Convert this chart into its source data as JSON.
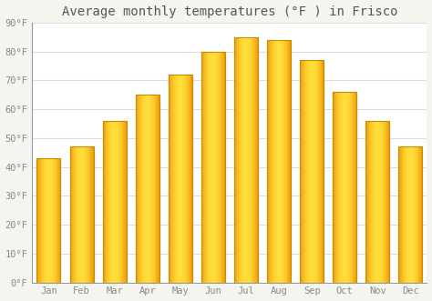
{
  "title": "Average monthly temperatures (°F ) in Frisco",
  "months": [
    "Jan",
    "Feb",
    "Mar",
    "Apr",
    "May",
    "Jun",
    "Jul",
    "Aug",
    "Sep",
    "Oct",
    "Nov",
    "Dec"
  ],
  "values": [
    43,
    47,
    56,
    65,
    72,
    80,
    85,
    84,
    77,
    66,
    56,
    47
  ],
  "bar_color_main": "#FFBE00",
  "bar_color_light": "#FFD45A",
  "bar_edge_color": "#CC8800",
  "background_color": "#F5F5F0",
  "plot_bg_color": "#FFFFFF",
  "grid_color": "#DDDDDD",
  "ylim": [
    0,
    90
  ],
  "yticks": [
    0,
    10,
    20,
    30,
    40,
    50,
    60,
    70,
    80,
    90
  ],
  "ytick_labels": [
    "0°F",
    "10°F",
    "20°F",
    "30°F",
    "40°F",
    "50°F",
    "60°F",
    "70°F",
    "80°F",
    "90°F"
  ],
  "title_fontsize": 10,
  "tick_fontsize": 7.5,
  "title_color": "#555555",
  "tick_color": "#888888",
  "spine_color": "#999999",
  "bar_width": 0.72
}
